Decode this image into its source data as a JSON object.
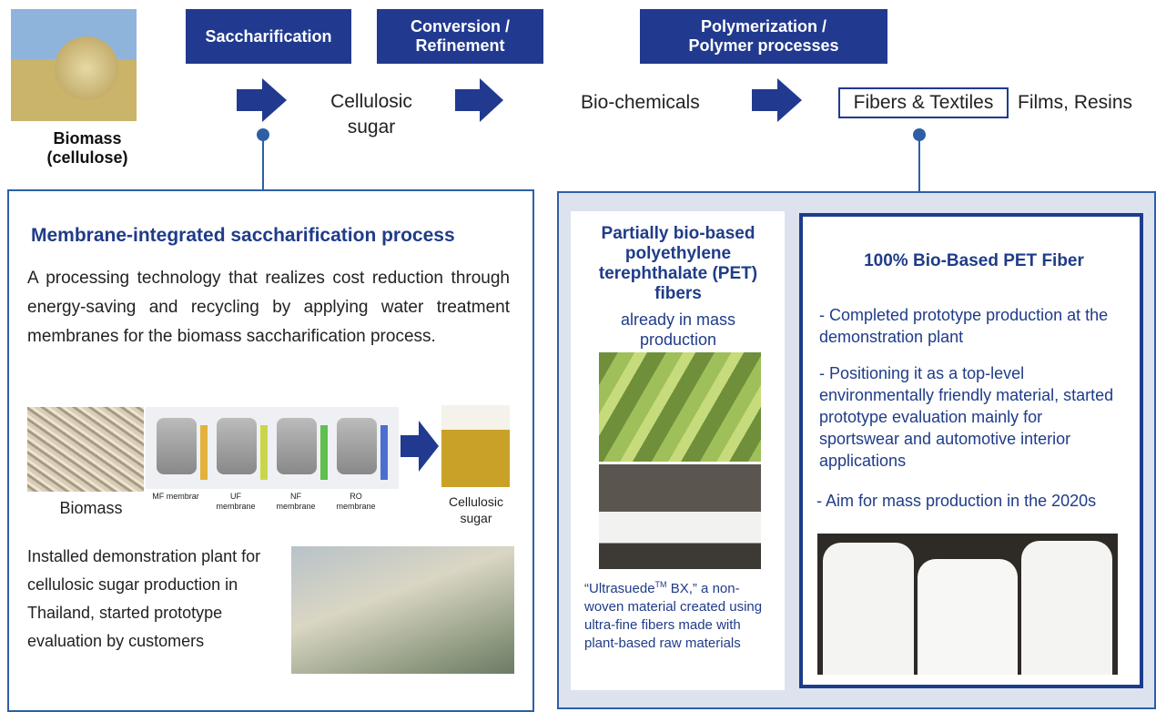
{
  "header": {
    "biomass_label": [
      "Biomass",
      "(cellulose)"
    ],
    "steps": [
      [
        "Saccharification"
      ],
      [
        "Conversion /",
        "Refinement"
      ],
      [
        "Polymerization /",
        "Polymer processes"
      ]
    ],
    "sugar": [
      "Cellulosic",
      "sugar"
    ],
    "chemicals": "Bio-chemicals",
    "fibers": "Fibers & Textiles",
    "films": "Films, Resins"
  },
  "left_panel": {
    "title": "Membrane-integrated saccharification process",
    "description": "A processing technology that realizes cost reduction through energy-saving and recycling by applying water treatment membranes for the biomass saccharification process.",
    "figure": {
      "biomass": "Biomass",
      "membranes": [
        [
          "MF membrar"
        ],
        [
          "UF",
          "membrane"
        ],
        [
          "NF",
          "membrane"
        ],
        [
          "RO",
          "membrane"
        ]
      ],
      "sugar": [
        "Cellulosic",
        "sugar"
      ]
    },
    "plant_text": "Installed demonstration plant for cellulosic sugar production in Thailand, started prototype evaluation by customers"
  },
  "right_panel": {
    "pet_title": "Partially bio-based polyethylene terephthalate (PET) fibers",
    "pet_status": "already in mass production",
    "ultrasuede": {
      "name": "“Ultrasuede",
      "superscript": "TM",
      "rest": " BX,” a non-woven material created using ultra-fine fibers made with plant-based raw materials"
    },
    "bio_title": "100% Bio-Based PET Fiber",
    "bullets": [
      "- Completed prototype production at the demonstration plant",
      "- Positioning it as a top-level environmentally friendly material, started prototype evaluation mainly for sportswear and automotive interior applications",
      "- Aim for mass production in the 2020s"
    ]
  }
}
